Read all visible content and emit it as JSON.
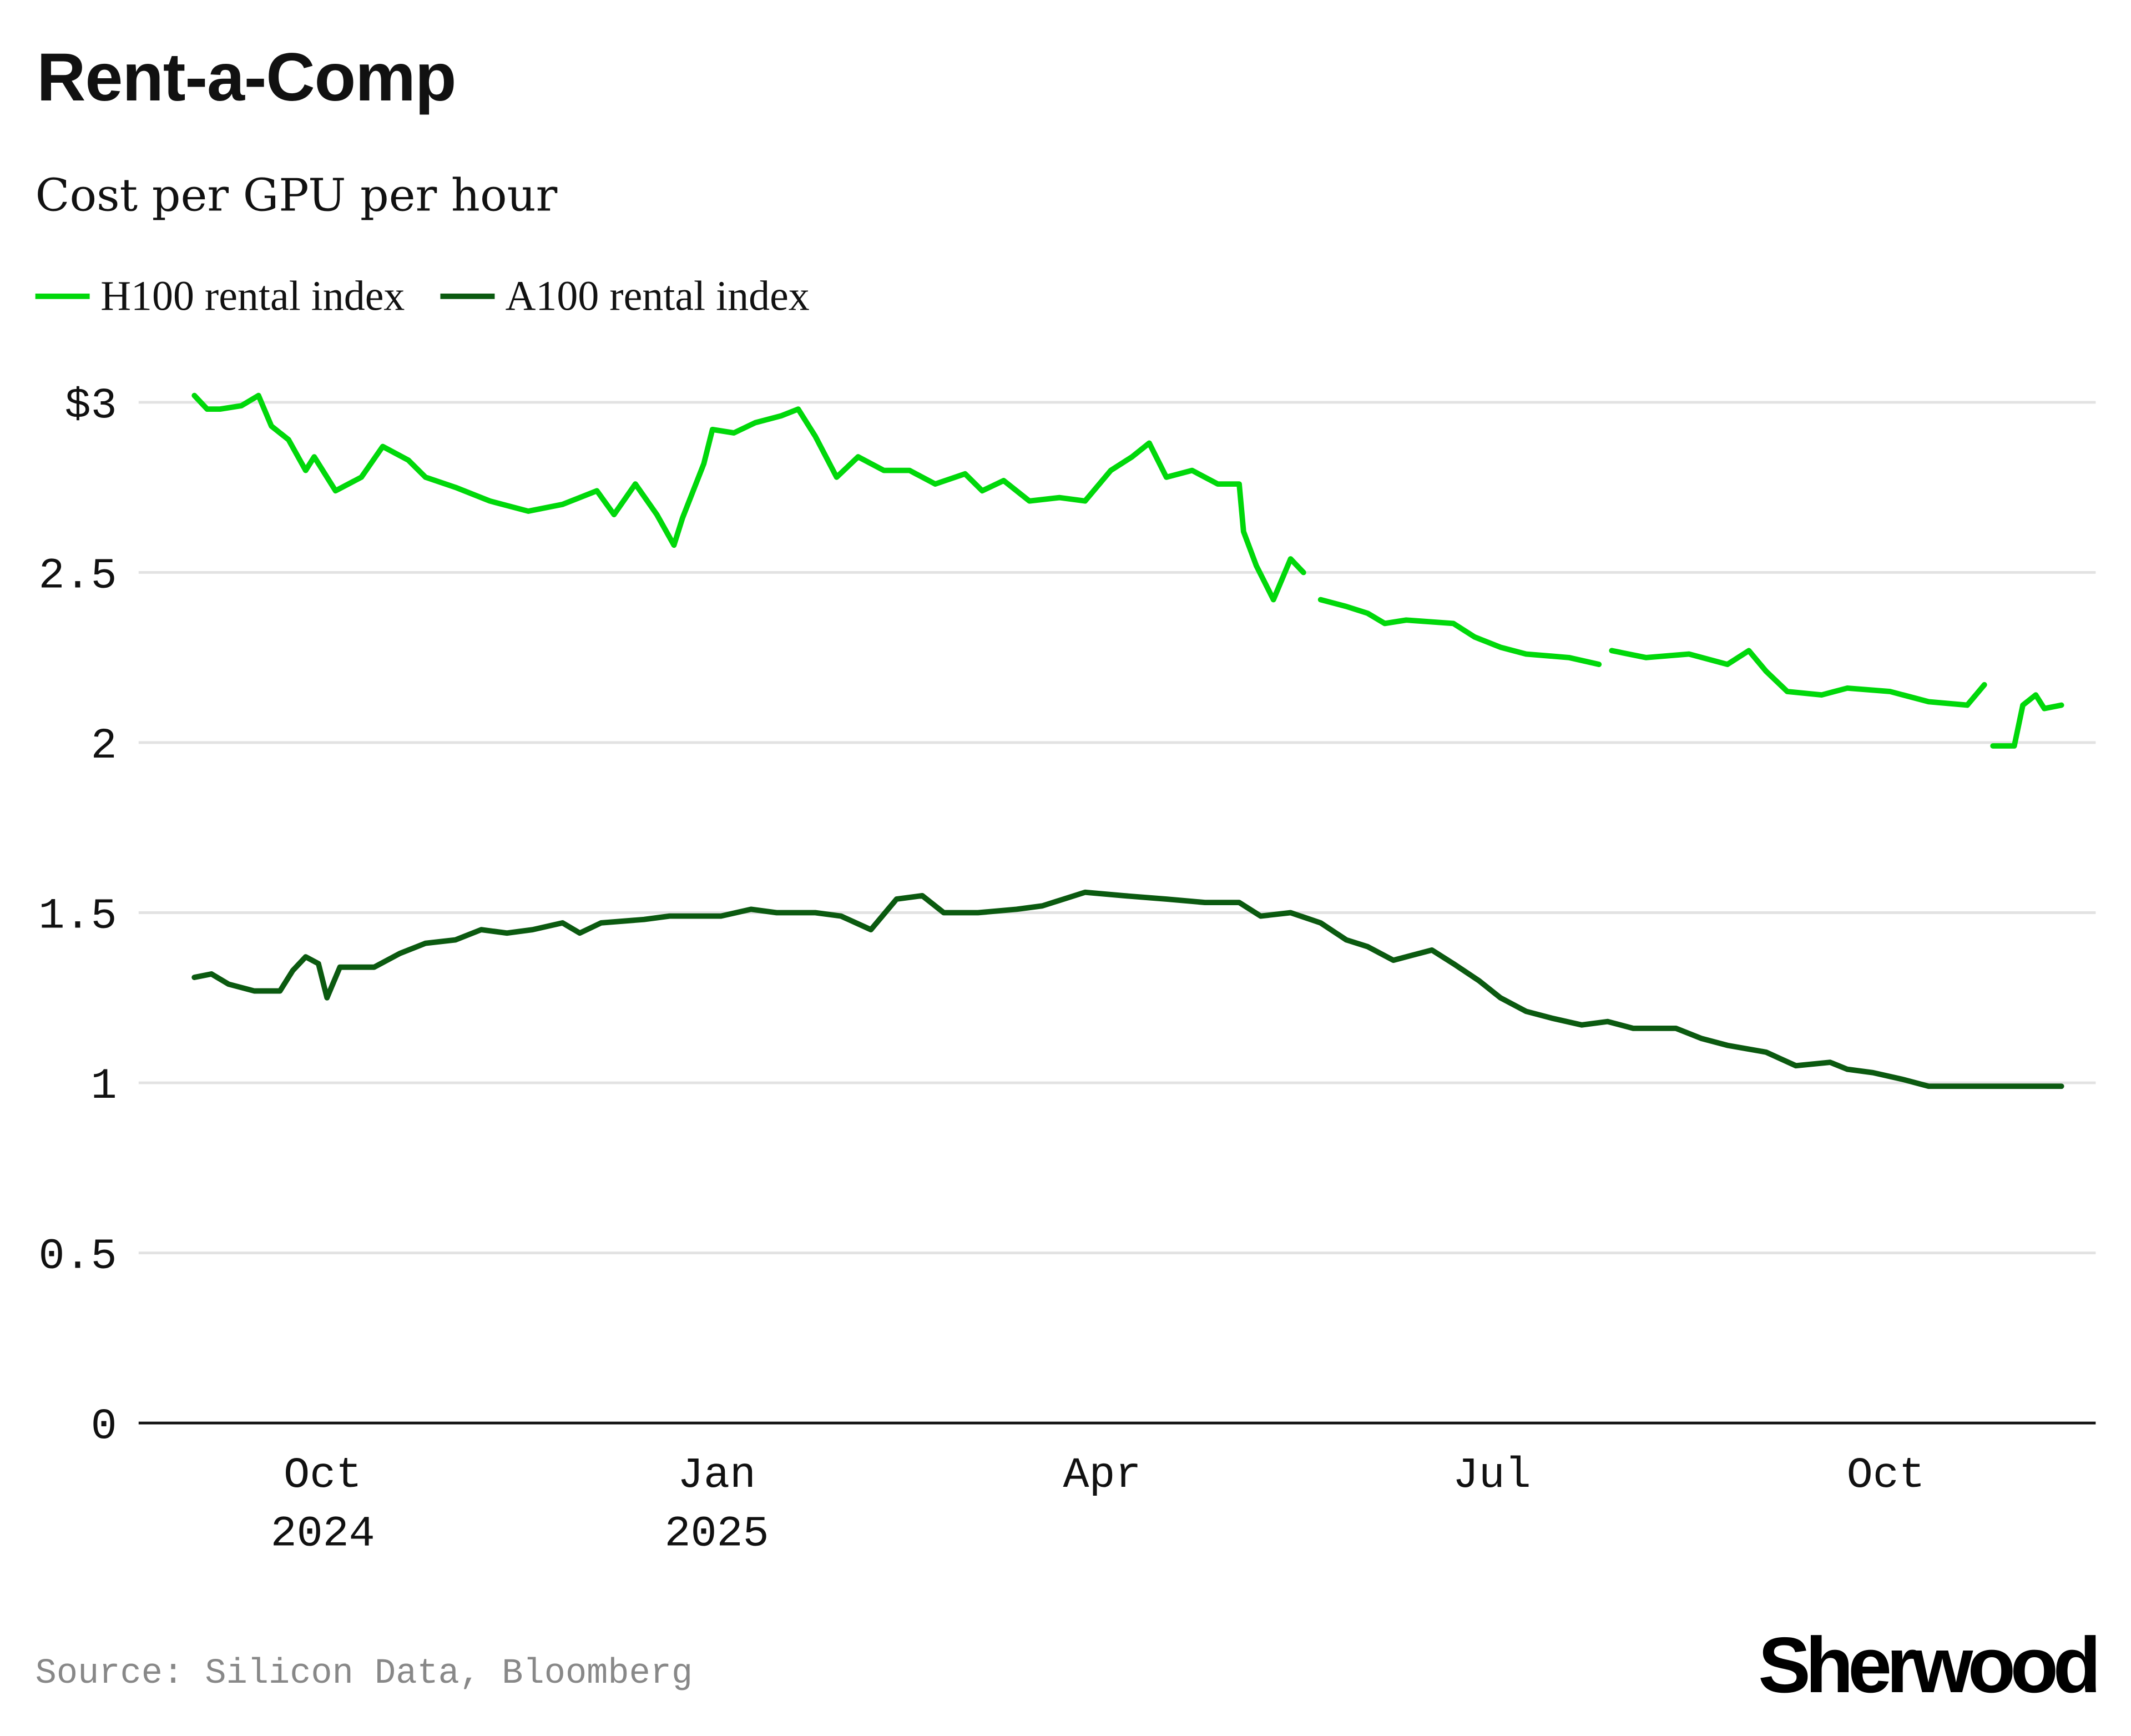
{
  "title": "Rent-a-Comp",
  "subtitle": "Cost per GPU per hour",
  "source": "Source: Silicon Data, Bloomberg",
  "logo": "Sherwood",
  "chart_data": {
    "type": "line",
    "ylim": [
      0,
      3
    ],
    "y_ticks": [
      {
        "v": 0,
        "label": "0"
      },
      {
        "v": 0.5,
        "label": "0.5"
      },
      {
        "v": 1,
        "label": "1"
      },
      {
        "v": 1.5,
        "label": "1.5"
      },
      {
        "v": 2,
        "label": "2"
      },
      {
        "v": 2.5,
        "label": "2.5"
      },
      {
        "v": 3,
        "label": "$3"
      }
    ],
    "x_ticks": [
      {
        "date": "2024-10-01",
        "label": "Oct",
        "sublabel": "2024"
      },
      {
        "date": "2025-01-01",
        "label": "Jan",
        "sublabel": "2025"
      },
      {
        "date": "2025-04-01",
        "label": "Apr",
        "sublabel": ""
      },
      {
        "date": "2025-07-01",
        "label": "Jul",
        "sublabel": ""
      },
      {
        "date": "2025-10-01",
        "label": "Oct",
        "sublabel": ""
      }
    ],
    "xlim": [
      "2024-08-19",
      "2025-11-19"
    ],
    "grid": true,
    "legend_placement": "top-left",
    "series": [
      {
        "name": "H100 rental index",
        "color": "#00d80a",
        "points": [
          [
            "2024-09-01",
            3.02
          ],
          [
            "2024-09-04",
            2.98
          ],
          [
            "2024-09-07",
            2.98
          ],
          [
            "2024-09-12",
            2.99
          ],
          [
            "2024-09-16",
            3.02
          ],
          [
            "2024-09-19",
            2.93
          ],
          [
            "2024-09-23",
            2.89
          ],
          [
            "2024-09-27",
            2.8
          ],
          [
            "2024-09-29",
            2.84
          ],
          [
            "2024-10-04",
            2.74
          ],
          [
            "2024-10-10",
            2.78
          ],
          [
            "2024-10-15",
            2.87
          ],
          [
            "2024-10-21",
            2.83
          ],
          [
            "2024-10-25",
            2.78
          ],
          [
            "2024-11-01",
            2.75
          ],
          [
            "2024-11-09",
            2.71
          ],
          [
            "2024-11-18",
            2.68
          ],
          [
            "2024-11-26",
            2.7
          ],
          [
            "2024-12-04",
            2.74
          ],
          [
            "2024-12-08",
            2.67
          ],
          [
            "2024-12-13",
            2.76
          ],
          [
            "2024-12-18",
            2.67
          ],
          [
            "2024-12-22",
            2.58
          ],
          [
            "2024-12-24",
            2.66
          ],
          [
            "2024-12-29",
            2.82
          ],
          [
            "2024-12-31",
            2.92
          ],
          [
            "2025-01-05",
            2.91
          ],
          [
            "2025-01-10",
            2.94
          ],
          [
            "2025-01-16",
            2.96
          ],
          [
            "2025-01-20",
            2.98
          ],
          [
            "2025-01-24",
            2.9
          ],
          [
            "2025-01-29",
            2.78
          ],
          [
            "2025-02-03",
            2.84
          ],
          [
            "2025-02-09",
            2.8
          ],
          [
            "2025-02-15",
            2.8
          ],
          [
            "2025-02-21",
            2.76
          ],
          [
            "2025-02-28",
            2.79
          ],
          [
            "2025-03-04",
            2.74
          ],
          [
            "2025-03-09",
            2.77
          ],
          [
            "2025-03-15",
            2.71
          ],
          [
            "2025-03-22",
            2.72
          ],
          [
            "2025-03-28",
            2.71
          ],
          [
            "2025-04-03",
            2.8
          ],
          [
            "2025-04-08",
            2.84
          ],
          [
            "2025-04-12",
            2.88
          ],
          [
            "2025-04-16",
            2.78
          ],
          [
            "2025-04-22",
            2.8
          ],
          [
            "2025-04-28",
            2.76
          ],
          [
            "2025-05-03",
            2.76
          ],
          [
            "2025-05-04",
            2.62
          ],
          [
            "2025-05-07",
            2.52
          ],
          [
            "2025-05-11",
            2.42
          ],
          [
            "2025-05-15",
            2.54
          ],
          [
            "2025-05-18",
            2.5
          ],
          [
            "2025-05-20",
            null
          ],
          [
            "2025-05-22",
            2.42
          ],
          [
            "2025-05-28",
            2.4
          ],
          [
            "2025-06-02",
            2.38
          ],
          [
            "2025-06-06",
            2.35
          ],
          [
            "2025-06-11",
            2.36
          ],
          [
            "2025-06-22",
            2.35
          ],
          [
            "2025-06-27",
            2.31
          ],
          [
            "2025-07-03",
            2.28
          ],
          [
            "2025-07-09",
            2.26
          ],
          [
            "2025-07-19",
            2.25
          ],
          [
            "2025-07-26",
            2.23
          ],
          [
            "2025-07-27",
            null
          ],
          [
            "2025-07-29",
            2.27
          ],
          [
            "2025-08-06",
            2.25
          ],
          [
            "2025-08-16",
            2.26
          ],
          [
            "2025-08-25",
            2.23
          ],
          [
            "2025-08-30",
            2.27
          ],
          [
            "2025-09-03",
            2.21
          ],
          [
            "2025-09-08",
            2.15
          ],
          [
            "2025-09-16",
            2.14
          ],
          [
            "2025-09-22",
            2.16
          ],
          [
            "2025-10-02",
            2.15
          ],
          [
            "2025-10-11",
            2.12
          ],
          [
            "2025-10-20",
            2.11
          ],
          [
            "2025-10-24",
            2.17
          ],
          [
            "2025-10-25",
            null
          ],
          [
            "2025-10-26",
            1.99
          ],
          [
            "2025-10-31",
            1.99
          ],
          [
            "2025-11-02",
            2.11
          ],
          [
            "2025-11-05",
            2.14
          ],
          [
            "2025-11-07",
            2.1
          ],
          [
            "2025-11-11",
            2.11
          ]
        ]
      },
      {
        "name": "A100 rental index",
        "color": "#0b5a10",
        "points": [
          [
            "2024-09-01",
            1.31
          ],
          [
            "2024-09-05",
            1.32
          ],
          [
            "2024-09-09",
            1.29
          ],
          [
            "2024-09-15",
            1.27
          ],
          [
            "2024-09-21",
            1.27
          ],
          [
            "2024-09-24",
            1.33
          ],
          [
            "2024-09-27",
            1.37
          ],
          [
            "2024-09-30",
            1.35
          ],
          [
            "2024-10-02",
            1.25
          ],
          [
            "2024-10-05",
            1.34
          ],
          [
            "2024-10-13",
            1.34
          ],
          [
            "2024-10-19",
            1.38
          ],
          [
            "2024-10-25",
            1.41
          ],
          [
            "2024-11-01",
            1.42
          ],
          [
            "2024-11-07",
            1.45
          ],
          [
            "2024-11-13",
            1.44
          ],
          [
            "2024-11-19",
            1.45
          ],
          [
            "2024-11-26",
            1.47
          ],
          [
            "2024-11-30",
            1.44
          ],
          [
            "2024-12-05",
            1.47
          ],
          [
            "2024-12-15",
            1.48
          ],
          [
            "2024-12-21",
            1.49
          ],
          [
            "2025-01-02",
            1.49
          ],
          [
            "2025-01-09",
            1.51
          ],
          [
            "2025-01-15",
            1.5
          ],
          [
            "2025-01-24",
            1.5
          ],
          [
            "2025-01-30",
            1.49
          ],
          [
            "2025-02-06",
            1.45
          ],
          [
            "2025-02-12",
            1.54
          ],
          [
            "2025-02-18",
            1.55
          ],
          [
            "2025-02-23",
            1.5
          ],
          [
            "2025-03-03",
            1.5
          ],
          [
            "2025-03-12",
            1.51
          ],
          [
            "2025-03-18",
            1.52
          ],
          [
            "2025-03-28",
            1.56
          ],
          [
            "2025-04-06",
            1.55
          ],
          [
            "2025-04-16",
            1.54
          ],
          [
            "2025-04-25",
            1.53
          ],
          [
            "2025-05-03",
            1.53
          ],
          [
            "2025-05-08",
            1.49
          ],
          [
            "2025-05-15",
            1.5
          ],
          [
            "2025-05-22",
            1.47
          ],
          [
            "2025-05-28",
            1.42
          ],
          [
            "2025-06-02",
            1.4
          ],
          [
            "2025-06-08",
            1.36
          ],
          [
            "2025-06-17",
            1.39
          ],
          [
            "2025-06-22",
            1.35
          ],
          [
            "2025-06-28",
            1.3
          ],
          [
            "2025-07-03",
            1.25
          ],
          [
            "2025-07-09",
            1.21
          ],
          [
            "2025-07-15",
            1.19
          ],
          [
            "2025-07-22",
            1.17
          ],
          [
            "2025-07-28",
            1.18
          ],
          [
            "2025-08-03",
            1.16
          ],
          [
            "2025-08-13",
            1.16
          ],
          [
            "2025-08-19",
            1.13
          ],
          [
            "2025-08-25",
            1.11
          ],
          [
            "2025-09-03",
            1.09
          ],
          [
            "2025-09-10",
            1.05
          ],
          [
            "2025-09-18",
            1.06
          ],
          [
            "2025-09-22",
            1.04
          ],
          [
            "2025-09-28",
            1.03
          ],
          [
            "2025-10-05",
            1.01
          ],
          [
            "2025-10-11",
            0.99
          ],
          [
            "2025-10-20",
            0.99
          ],
          [
            "2025-10-30",
            0.99
          ],
          [
            "2025-11-05",
            0.99
          ],
          [
            "2025-11-11",
            0.99
          ]
        ]
      }
    ]
  }
}
